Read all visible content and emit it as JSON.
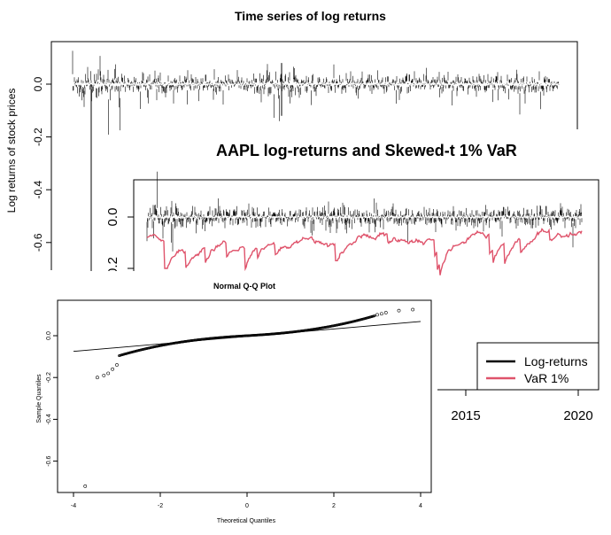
{
  "chart_data": [
    {
      "type": "line",
      "title": "Time series of log returns",
      "ylabel": "Log returns of stock prices",
      "ylim": [
        -0.75,
        0.17
      ],
      "yticks": [
        0.0,
        -0.2,
        -0.4,
        -0.6
      ],
      "ytick_labels": [
        "0.0",
        "-0.2",
        "-0.4",
        "-0.6"
      ],
      "series": [
        {
          "values_description_hidden": "",
          "min_value": -0.73,
          "max_value": 0.13,
          "band": 0.03
        }
      ]
    },
    {
      "type": "line",
      "title": "AAPL log-returns and Skewed-t 1% VaR",
      "xticks": [
        2015,
        2020
      ],
      "xtick_labels": [
        "2015",
        "2020"
      ],
      "yticks": [
        0.0,
        -0.2
      ],
      "ytick_labels": [
        "0.0",
        "-0.2"
      ],
      "legend": {
        "placement": "bottom-right",
        "entries": [
          "Log-returns",
          "VaR 1%"
        ]
      },
      "series": [
        {
          "name": "Log-returns",
          "color": "#000000"
        },
        {
          "name": "VaR 1%",
          "color": "#df536b"
        }
      ]
    },
    {
      "type": "scatter",
      "title": "Normal Q-Q Plot",
      "xlabel": "Theoretical Quantiles",
      "ylabel": "Sample Quantiles",
      "xlim": [
        -4,
        4
      ],
      "ylim": [
        -0.75,
        0.17
      ],
      "xticks": [
        -4,
        -2,
        0,
        2,
        4
      ],
      "xtick_labels": [
        "-4",
        "-2",
        "0",
        "2",
        "4"
      ],
      "yticks": [
        0.0,
        -0.2,
        -0.4,
        -0.6
      ],
      "ytick_labels": [
        "0.0",
        "-0.2",
        "-0.4",
        "-0.6"
      ],
      "reference_line": {
        "x": [
          -4,
          4
        ],
        "y": [
          -0.075,
          0.068
        ]
      },
      "tail_points": [
        {
          "x": -3.73,
          "y": -0.72
        },
        {
          "x": -3.45,
          "y": -0.2
        },
        {
          "x": -3.3,
          "y": -0.19
        },
        {
          "x": -3.2,
          "y": -0.18
        },
        {
          "x": -3.1,
          "y": -0.16
        },
        {
          "x": -3.0,
          "y": -0.14
        },
        {
          "x": 3.0,
          "y": 0.1
        },
        {
          "x": 3.1,
          "y": 0.105
        },
        {
          "x": 3.2,
          "y": 0.11
        },
        {
          "x": 3.5,
          "y": 0.12
        },
        {
          "x": 3.82,
          "y": 0.125
        }
      ]
    }
  ]
}
